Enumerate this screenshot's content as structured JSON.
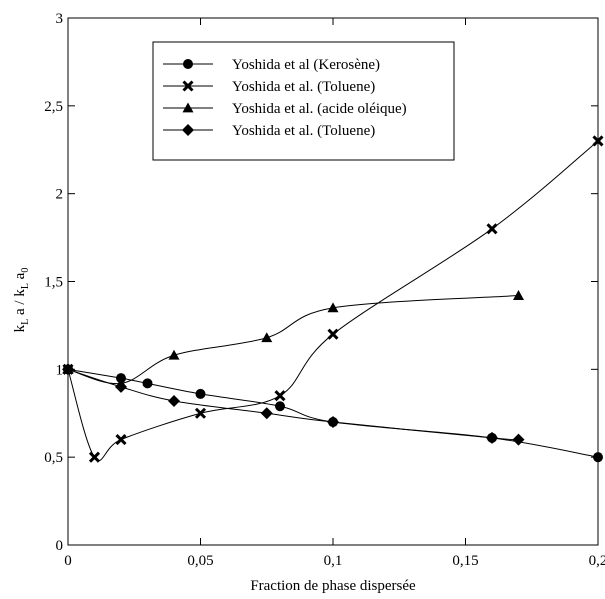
{
  "chart_data": {
    "type": "line",
    "title": "",
    "xlabel": "Fraction de phase dispersée",
    "ylabel": {
      "k1": "k",
      "sub1": "L",
      "mid": " a / k",
      "sub2": "L",
      "a0": " a",
      "sub3": "0"
    },
    "xlim": [
      0,
      0.2
    ],
    "ylim": [
      0,
      3
    ],
    "x_ticks": [
      0,
      0.05,
      0.1,
      0.15,
      0.2
    ],
    "x_tick_labels": [
      "0",
      "0,05",
      "0,1",
      "0,15",
      "0,2"
    ],
    "y_ticks": [
      0,
      0.5,
      1,
      1.5,
      2,
      2.5,
      3
    ],
    "y_tick_labels": [
      "0",
      "0,5",
      "1",
      "1,5",
      "2",
      "2,5",
      "3"
    ],
    "grid": false,
    "legend_position": "top-center",
    "series": [
      {
        "name": "Yoshida et al (Kerosène)",
        "marker": "circle",
        "x": [
          0,
          0.02,
          0.03,
          0.05,
          0.08,
          0.1,
          0.16,
          0.2
        ],
        "y": [
          1.0,
          0.95,
          0.92,
          0.86,
          0.79,
          0.7,
          0.61,
          0.5
        ]
      },
      {
        "name": "Yoshida et al. (Toluene)",
        "marker": "cross",
        "x": [
          0,
          0.01,
          0.02,
          0.05,
          0.08,
          0.1,
          0.16,
          0.2
        ],
        "y": [
          1.0,
          0.5,
          0.6,
          0.75,
          0.85,
          1.2,
          1.8,
          2.3
        ]
      },
      {
        "name": "Yoshida et al. (acide oléique)",
        "marker": "triangle",
        "x": [
          0,
          0.02,
          0.04,
          0.075,
          0.1,
          0.17
        ],
        "y": [
          1.0,
          0.92,
          1.08,
          1.18,
          1.35,
          1.42
        ]
      },
      {
        "name": "Yoshida et al. (Toluene)",
        "marker": "diamond",
        "x": [
          0,
          0.02,
          0.04,
          0.075,
          0.1,
          0.16,
          0.17
        ],
        "y": [
          1.0,
          0.9,
          0.82,
          0.75,
          0.7,
          0.61,
          0.6
        ]
      }
    ]
  }
}
